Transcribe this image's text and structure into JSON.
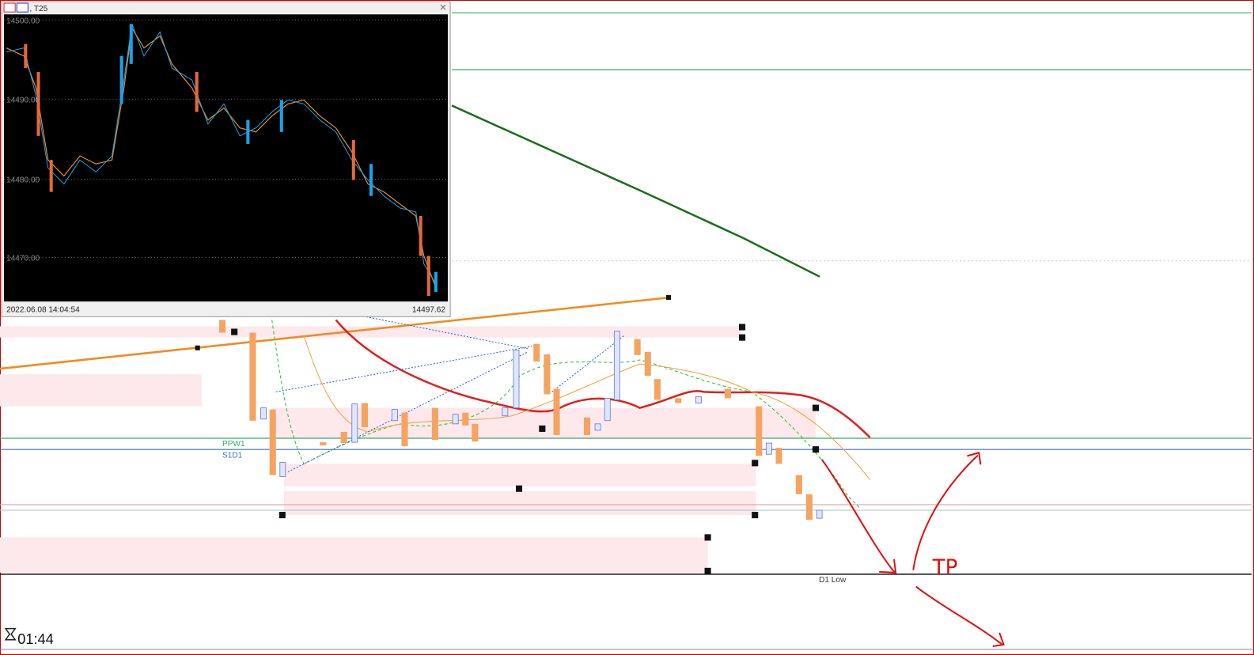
{
  "inset_window": {
    "title": ", T25",
    "price_labels": [
      "14500.00",
      "14490.00",
      "14480.00",
      "14470.00"
    ],
    "timestamp": "2022.06.08 14:04:54",
    "price": "14497.62"
  },
  "chart_labels": {
    "levels": [
      "PPW1",
      "S1D1",
      "D1 Low"
    ],
    "annotation": "TP"
  },
  "timer": "01:44"
}
